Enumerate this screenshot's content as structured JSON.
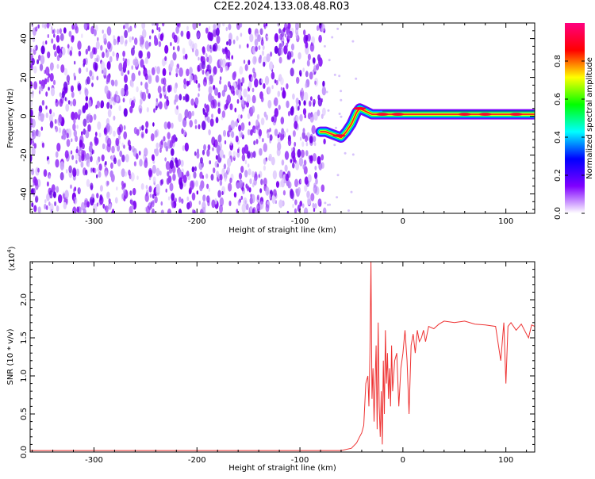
{
  "figure": {
    "title": "C2E2.2024.133.08.48.R03"
  },
  "chart_data": [
    {
      "type": "heatmap",
      "xlabel": "Height of straight line (km)",
      "ylabel": "Frequency (Hz)",
      "xlim": [
        -362,
        128
      ],
      "ylim": [
        -50,
        48
      ],
      "x_ticks": [
        -300,
        -200,
        -100,
        0,
        100
      ],
      "y_ticks": [
        -40,
        -20,
        0,
        20,
        40
      ],
      "x_tick_labels": [
        "-300",
        "-200",
        "-100",
        "0",
        "100"
      ],
      "y_tick_labels": [
        "-40",
        "-20",
        "0",
        "20",
        "40"
      ],
      "noise_region_x": [
        -362,
        -76
      ],
      "ridge": {
        "x": [
          -80,
          -75,
          -70,
          -65,
          -60,
          -55,
          -50,
          -45,
          -42,
          -38,
          -34,
          -30,
          -25,
          -20,
          -10,
          0,
          20,
          40,
          60,
          80,
          100,
          128
        ],
        "frequency": [
          -8,
          -8,
          -9,
          -10,
          -11,
          -8,
          -4,
          2,
          4,
          3,
          2,
          1,
          1,
          1,
          1,
          1,
          1,
          1,
          1,
          1,
          1,
          1
        ]
      },
      "colorbar": {
        "label": "Normalized spectral amplitude",
        "range": [
          0,
          1
        ],
        "ticks": [
          0.0,
          0.2,
          0.4,
          0.6,
          0.8
        ],
        "tick_labels": [
          "0.0",
          "0.2",
          "0.4",
          "0.6",
          "0.8"
        ],
        "colormap": [
          "#ffffff",
          "#8000ff",
          "#0000ff",
          "#00ffff",
          "#00ff00",
          "#ffff00",
          "#ff0000",
          "#ff0080"
        ]
      }
    },
    {
      "type": "line",
      "xlabel": "Height of straight line (km)",
      "ylabel": "SNR (10 * v/v)",
      "y_multiplier_label": "(x10",
      "y_multiplier_exp": "4",
      "xlim": [
        -362,
        128
      ],
      "ylim": [
        0,
        2.5
      ],
      "x_ticks": [
        -300,
        -200,
        -100,
        0,
        100
      ],
      "y_ticks": [
        0.0,
        0.5,
        1.0,
        1.5,
        2.0
      ],
      "x_tick_labels": [
        "-300",
        "-200",
        "-100",
        "0",
        "100"
      ],
      "y_tick_labels": [
        "0.0",
        "0.5",
        "1.0",
        "1.5",
        "2.0"
      ],
      "series": [
        {
          "color": "#ee3333",
          "x": [
            -362,
            -60,
            -50,
            -45,
            -42,
            -40,
            -38,
            -36,
            -34,
            -33,
            -32,
            -31,
            -30,
            -29,
            -28,
            -27,
            -26,
            -25,
            -24,
            -23,
            -22,
            -21,
            -20,
            -19,
            -18,
            -17,
            -16,
            -15,
            -14,
            -13,
            -12,
            -11,
            -10,
            -8,
            -6,
            -4,
            -2,
            0,
            2,
            4,
            6,
            8,
            10,
            12,
            14,
            16,
            18,
            20,
            22,
            25,
            30,
            35,
            40,
            50,
            60,
            70,
            80,
            90,
            95,
            98,
            100,
            102,
            105,
            110,
            115,
            120,
            122,
            125,
            128
          ],
          "values": [
            0.02,
            0.02,
            0.05,
            0.12,
            0.2,
            0.25,
            0.35,
            0.9,
            1.0,
            0.6,
            1.3,
            2.5,
            0.7,
            1.1,
            0.4,
            0.9,
            1.4,
            0.3,
            1.7,
            0.6,
            0.2,
            0.8,
            0.1,
            1.2,
            0.5,
            1.6,
            0.9,
            1.3,
            0.7,
            1.1,
            0.6,
            1.4,
            0.8,
            1.2,
            1.3,
            0.6,
            1.1,
            1.3,
            1.6,
            1.2,
            0.5,
            1.4,
            1.55,
            1.3,
            1.6,
            1.45,
            1.5,
            1.6,
            1.45,
            1.65,
            1.62,
            1.68,
            1.72,
            1.7,
            1.72,
            1.68,
            1.67,
            1.65,
            1.2,
            1.7,
            0.9,
            1.65,
            1.7,
            1.6,
            1.68,
            1.55,
            1.5,
            1.67,
            1.65
          ]
        }
      ]
    }
  ]
}
